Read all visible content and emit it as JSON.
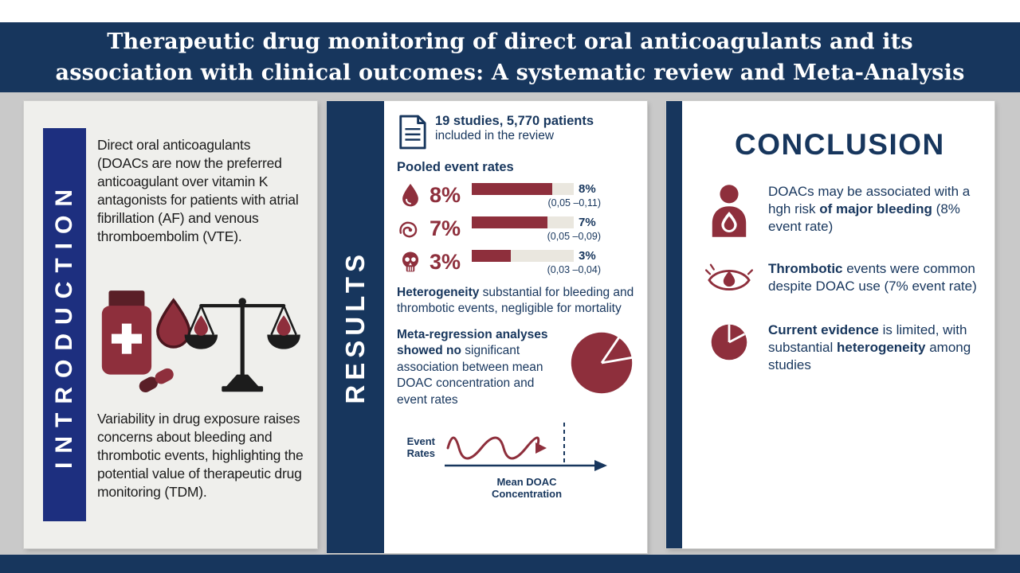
{
  "colors": {
    "navy": "#17365d",
    "blue": "#1d2f7f",
    "maroon": "#8e2f3c",
    "maroon-dark": "#5a1f27",
    "bar-track": "#eae7df",
    "bg-gray": "#c9c9c9",
    "panel-gray": "#efefec",
    "ink": "#1b1b1b"
  },
  "banner": {
    "line1": "Therapeutic drug monitoring of direct oral anticoagulants and its",
    "line2": "association with clinical outcomes: A systematic review and Meta-Analysis"
  },
  "intro": {
    "label": "INTRODUCTION",
    "para1": "Direct oral anticoagulants (DOACs are now the preferred anticoagulant over vitamin K antagonists for patients with atrial fibrillation (AF) and venous thromboembolim (VTE).",
    "para2": "Variability in drug exposure raises concerns about bleeding and thrombotic events, highlighting the potential value of therapeutic drug monitoring (TDM)."
  },
  "results": {
    "label": "RESULTS",
    "studies_bold": "19 studies, 5,770 patients",
    "studies_rest": "included in the review",
    "pooled_title": "Pooled event rates",
    "rows": [
      {
        "name": "bleeding",
        "pct": "8%",
        "fill": "79%",
        "value": "8%",
        "ci": "(0,05 –0,11)"
      },
      {
        "name": "thrombotic",
        "pct": "7%",
        "fill": "74%",
        "value": "7%",
        "ci": "(0,05 –0,09)"
      },
      {
        "name": "mortality",
        "pct": "3%",
        "fill": "38%",
        "value": "3%",
        "ci": "(0,03 –0,04)"
      }
    ],
    "heterogeneity_bold": "Heterogeneity",
    "heterogeneity_rest": " substantial for bleeding and thrombotic events, negligible for mortality",
    "metareg_bold": "Meta-regression analyses showed no",
    "metareg_rest": " significant association between mean DOAC concentration and event rates",
    "axis_y": "Event Rates",
    "axis_x": "Mean DOAC Concentration"
  },
  "conclusion": {
    "title": "CONCLUSION",
    "items": [
      {
        "p1": "DOACs may be associated with a hgh risk ",
        "b1": "of major bleeding",
        "p2": " (8% event rate)",
        "b2": "",
        "p3": ""
      },
      {
        "p1": "",
        "b1": "Thrombotic",
        "p2": " events were common despite DOAC use (7% event rate)",
        "b2": "",
        "p3": ""
      },
      {
        "p1": "",
        "b1": "Current evidence",
        "p2": " is limited, with substantial ",
        "b2": "heterogeneity",
        "p3": " among studies"
      }
    ]
  }
}
